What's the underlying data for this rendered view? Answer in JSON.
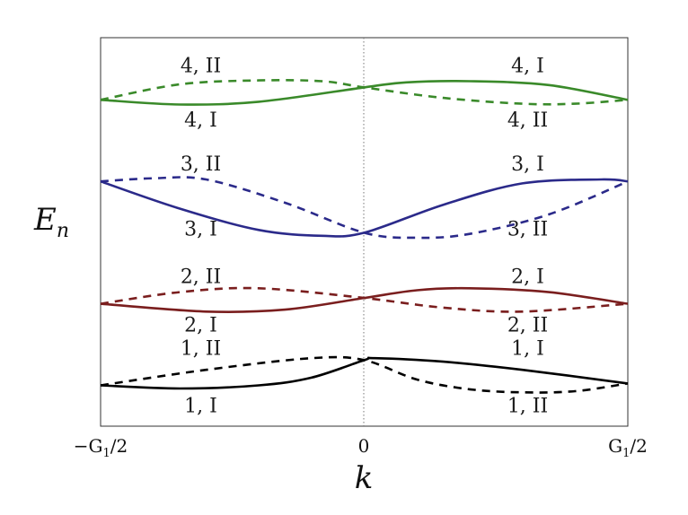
{
  "chart_data": {
    "type": "line",
    "title": "",
    "xlabel": "k",
    "ylabel": "E_n",
    "ylabel_main": "E",
    "ylabel_sub": "n",
    "x_ticks": [
      {
        "value": -0.5,
        "label_main": "−G",
        "label_sub": "1",
        "label_tail": "/2"
      },
      {
        "value": 0,
        "label_main": "0",
        "label_sub": "",
        "label_tail": ""
      },
      {
        "value": 0.5,
        "label_main": "G",
        "label_sub": "1",
        "label_tail": "/2"
      }
    ],
    "xlim": [
      -0.5,
      0.5
    ],
    "ylim": [
      0,
      10
    ],
    "center_line": {
      "x": 0,
      "style": "dotted"
    },
    "grid": false,
    "legend": "none",
    "bands": [
      {
        "band": 1,
        "color": "#000000",
        "solid": {
          "x": [
            -0.5,
            -0.35,
            -0.2,
            -0.1,
            0,
            0.02,
            0.15,
            0.3,
            0.5
          ],
          "y": [
            1.05,
            0.97,
            1.05,
            1.25,
            1.7,
            1.75,
            1.66,
            1.45,
            1.1
          ]
        },
        "dashed": {
          "x": [
            -0.5,
            -0.3,
            -0.1,
            0,
            0.1,
            0.2,
            0.3,
            0.4,
            0.5
          ],
          "y": [
            1.05,
            1.45,
            1.75,
            1.7,
            1.2,
            0.95,
            0.87,
            0.9,
            1.1
          ]
        },
        "labels": [
          {
            "text": "1, II",
            "x": -0.31,
            "y": 1.98
          },
          {
            "text": "1, I",
            "x": -0.31,
            "y": 0.5
          },
          {
            "text": "1, I",
            "x": 0.31,
            "y": 1.98
          },
          {
            "text": "1, II",
            "x": 0.31,
            "y": 0.5
          }
        ]
      },
      {
        "band": 2,
        "color": "#7a1e1e",
        "solid": {
          "x": [
            -0.5,
            -0.3,
            -0.15,
            0,
            0.1,
            0.2,
            0.35,
            0.5
          ],
          "y": [
            3.15,
            2.95,
            3.0,
            3.3,
            3.5,
            3.55,
            3.45,
            3.15
          ]
        },
        "dashed": {
          "x": [
            -0.5,
            -0.35,
            -0.2,
            0,
            0.15,
            0.3,
            0.5
          ],
          "y": [
            3.15,
            3.45,
            3.55,
            3.3,
            3.05,
            2.95,
            3.15
          ]
        },
        "labels": [
          {
            "text": "2, II",
            "x": -0.31,
            "y": 3.82
          },
          {
            "text": "2, I",
            "x": -0.31,
            "y": 2.58
          },
          {
            "text": "2, I",
            "x": 0.31,
            "y": 3.82
          },
          {
            "text": "2, II",
            "x": 0.31,
            "y": 2.58
          }
        ]
      },
      {
        "band": 3,
        "color": "#2b2a8a",
        "solid": {
          "x": [
            -0.5,
            -0.35,
            -0.2,
            -0.08,
            0,
            0.15,
            0.3,
            0.45,
            0.5
          ],
          "y": [
            6.3,
            5.6,
            5.05,
            4.9,
            4.98,
            5.7,
            6.25,
            6.35,
            6.3
          ]
        },
        "dashed": {
          "x": [
            -0.5,
            -0.4,
            -0.3,
            -0.15,
            0,
            0.1,
            0.2,
            0.35,
            0.5
          ],
          "y": [
            6.3,
            6.38,
            6.35,
            5.75,
            4.98,
            4.85,
            4.95,
            5.45,
            6.3
          ]
        },
        "labels": [
          {
            "text": "3, II",
            "x": -0.31,
            "y": 6.72
          },
          {
            "text": "3, I",
            "x": -0.31,
            "y": 5.05
          },
          {
            "text": "3, I",
            "x": 0.31,
            "y": 6.72
          },
          {
            "text": "3, II",
            "x": 0.31,
            "y": 5.05
          }
        ]
      },
      {
        "band": 4,
        "color": "#3a8a2a",
        "solid": {
          "x": [
            -0.5,
            -0.35,
            -0.2,
            0,
            0.08,
            0.2,
            0.35,
            0.5
          ],
          "y": [
            8.4,
            8.28,
            8.35,
            8.72,
            8.85,
            8.88,
            8.78,
            8.4
          ]
        },
        "dashed": {
          "x": [
            -0.5,
            -0.35,
            -0.2,
            -0.08,
            0,
            0.15,
            0.3,
            0.4,
            0.5
          ],
          "y": [
            8.4,
            8.8,
            8.9,
            8.88,
            8.72,
            8.45,
            8.3,
            8.3,
            8.4
          ]
        },
        "labels": [
          {
            "text": "4, II",
            "x": -0.31,
            "y": 9.25
          },
          {
            "text": "4, I",
            "x": -0.31,
            "y": 7.85
          },
          {
            "text": "4, I",
            "x": 0.31,
            "y": 9.25
          },
          {
            "text": "4, II",
            "x": 0.31,
            "y": 7.85
          }
        ]
      }
    ]
  }
}
